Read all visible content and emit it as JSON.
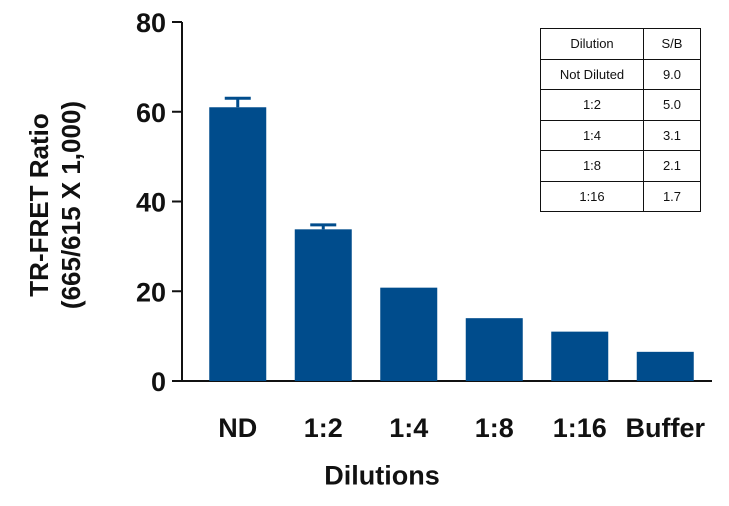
{
  "chart_data": {
    "type": "bar",
    "categories": [
      "ND",
      "1:2",
      "1:4",
      "1:8",
      "1:16",
      "Buffer"
    ],
    "values": [
      61,
      33.8,
      20.8,
      14,
      11,
      6.5
    ],
    "error_bars": [
      2,
      1,
      null,
      null,
      null,
      null
    ],
    "bar_color": "#004c8c",
    "xlabel": "Dilutions",
    "ylabel_line1": "TR-FRET Ratio",
    "ylabel_line2": "(665/615 X 1,000)",
    "ylim": [
      0,
      80
    ],
    "yticks": [
      0,
      20,
      40,
      60,
      80
    ],
    "grid": false,
    "inset_table": {
      "headers": [
        "Dilution",
        "S/B"
      ],
      "rows": [
        [
          "Not Diluted",
          "9.0"
        ],
        [
          "1:2",
          "5.0"
        ],
        [
          "1:4",
          "3.1"
        ],
        [
          "1:8",
          "2.1"
        ],
        [
          "1:16",
          "1.7"
        ]
      ]
    }
  }
}
